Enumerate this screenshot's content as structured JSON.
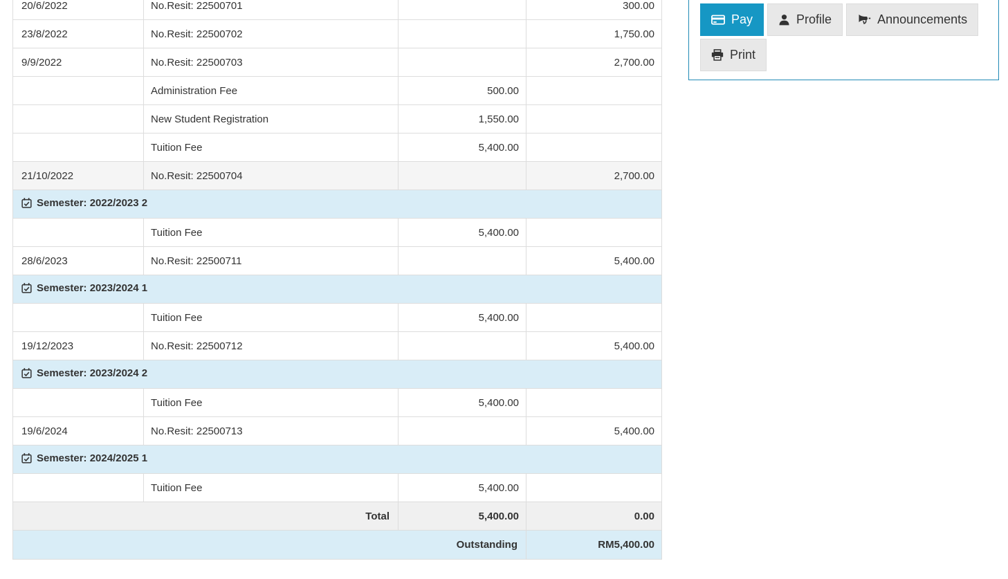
{
  "colors": {
    "accent_blue": "#1697c4",
    "panel_border": "#2089b5",
    "semester_row_bg": "#d9edf7",
    "outstanding_row_bg": "#d9edf7",
    "total_row_bg": "#f0f0f0",
    "striped_row_bg": "#f5f5f5",
    "table_border_gray": "#dddddd",
    "text_dark": "#333333",
    "button_gray_bg": "#e8e8e8"
  },
  "statement_table": {
    "rows": [
      {
        "type": "entry",
        "date": "20/6/2022",
        "description": "No.Resit: 22500701",
        "charge": "",
        "payment": "300.00"
      },
      {
        "type": "entry",
        "date": "23/8/2022",
        "description": "No.Resit: 22500702",
        "charge": "",
        "payment": "1,750.00"
      },
      {
        "type": "entry",
        "date": "9/9/2022",
        "description": "No.Resit: 22500703",
        "charge": "",
        "payment": "2,700.00"
      },
      {
        "type": "entry",
        "date": "",
        "description": "Administration Fee",
        "charge": "500.00",
        "payment": ""
      },
      {
        "type": "entry",
        "date": "",
        "description": "New Student Registration",
        "charge": "1,550.00",
        "payment": ""
      },
      {
        "type": "entry",
        "date": "",
        "description": "Tuition Fee",
        "charge": "5,400.00",
        "payment": ""
      },
      {
        "type": "entry",
        "date": "21/10/2022",
        "description": "No.Resit: 22500704",
        "charge": "",
        "payment": "2,700.00",
        "striped": true
      },
      {
        "type": "semester",
        "label": "Semester: 2022/2023 2"
      },
      {
        "type": "entry",
        "date": "",
        "description": "Tuition Fee",
        "charge": "5,400.00",
        "payment": ""
      },
      {
        "type": "entry",
        "date": "28/6/2023",
        "description": "No.Resit: 22500711",
        "charge": "",
        "payment": "5,400.00"
      },
      {
        "type": "semester",
        "label": "Semester: 2023/2024 1"
      },
      {
        "type": "entry",
        "date": "",
        "description": "Tuition Fee",
        "charge": "5,400.00",
        "payment": ""
      },
      {
        "type": "entry",
        "date": "19/12/2023",
        "description": "No.Resit: 22500712",
        "charge": "",
        "payment": "5,400.00"
      },
      {
        "type": "semester",
        "label": "Semester: 2023/2024 2"
      },
      {
        "type": "entry",
        "date": "",
        "description": "Tuition Fee",
        "charge": "5,400.00",
        "payment": ""
      },
      {
        "type": "entry",
        "date": "19/6/2024",
        "description": "No.Resit: 22500713",
        "charge": "",
        "payment": "5,400.00"
      },
      {
        "type": "semester",
        "label": "Semester: 2024/2025 1"
      },
      {
        "type": "entry",
        "date": "",
        "description": "Tuition Fee",
        "charge": "5,400.00",
        "payment": ""
      },
      {
        "type": "total",
        "label": "Total",
        "charge": "5,400.00",
        "payment": "0.00"
      },
      {
        "type": "outstanding",
        "label": "Outstanding",
        "amount": "RM5,400.00"
      }
    ]
  },
  "actions_panel": {
    "buttons": [
      {
        "id": "pay",
        "label": "Pay",
        "icon": "credit-card-icon",
        "primary": true
      },
      {
        "id": "profile",
        "label": "Profile",
        "icon": "user-icon",
        "primary": false
      },
      {
        "id": "announcements",
        "label": "Announcements",
        "icon": "bullhorn-icon",
        "primary": false
      },
      {
        "id": "print",
        "label": "Print",
        "icon": "printer-icon",
        "primary": false
      }
    ]
  }
}
